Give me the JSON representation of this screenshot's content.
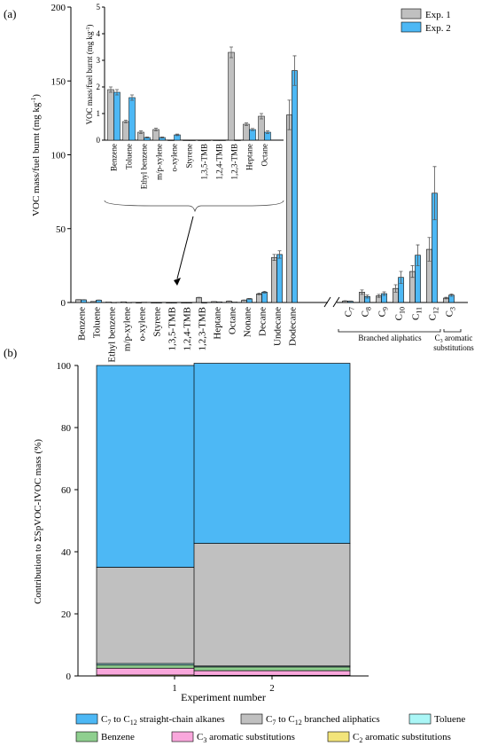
{
  "panel_a_label": "(a)",
  "panel_b_label": "(b)",
  "chart_data": [
    {
      "type": "bar",
      "ylabel_pre": "VOC mass/fuel burnt (mg kg",
      "ylabel_sup": "-1",
      "ylabel_post": ")",
      "ylim": [
        0,
        200
      ],
      "yticks": [
        0,
        50,
        100,
        150,
        200
      ],
      "legend_position": "top-right",
      "series": [
        {
          "name": "Exp. 1",
          "color": "#c0c0c0"
        },
        {
          "name": "Exp. 2",
          "color": "#4db8f5"
        }
      ],
      "categories": [
        {
          "label": "Benzene",
          "e1": 1.9,
          "e1err": 0.1,
          "e2": 1.8,
          "e2err": 0.1
        },
        {
          "label": "Toluene",
          "e1": 0.7,
          "e1err": 0.05,
          "e2": 1.6,
          "e2err": 0.1
        },
        {
          "label": "Ethyl benzene",
          "e1": 0.3,
          "e1err": 0.05,
          "e2": 0.1,
          "e2err": 0.02
        },
        {
          "label": "m/p-xylene",
          "e1": 0.4,
          "e1err": 0.05,
          "e2": 0.1,
          "e2err": 0.02
        },
        {
          "label": "o-xylene",
          "e1": 0.0,
          "e1err": 0,
          "e2": 0.2,
          "e2err": 0.03
        },
        {
          "label": "Styrene",
          "e1": 0.0,
          "e1err": 0,
          "e2": 0.0,
          "e2err": 0
        },
        {
          "label": "1,3,5-TMB",
          "e1": 0.0,
          "e1err": 0,
          "e2": 0.0,
          "e2err": 0
        },
        {
          "label": "1,2,4-TMB",
          "e1": 0.0,
          "e1err": 0,
          "e2": 0.0,
          "e2err": 0
        },
        {
          "label": "1,2,3-TMB",
          "e1": 3.3,
          "e1err": 0.2,
          "e2": 0.0,
          "e2err": 0
        },
        {
          "label": "Heptane",
          "e1": 0.6,
          "e1err": 0.05,
          "e2": 0.4,
          "e2err": 0.04
        },
        {
          "label": "Octane",
          "e1": 0.9,
          "e1err": 0.1,
          "e2": 0.3,
          "e2err": 0.05
        },
        {
          "label": "Nonane",
          "e1": 1.5,
          "e1err": 0.2,
          "e2": 2.5,
          "e2err": 0.3
        },
        {
          "label": "Decane",
          "e1": 5.8,
          "e1err": 0.5,
          "e2": 7.0,
          "e2err": 0.6
        },
        {
          "label": "Undecane",
          "e1": 30.5,
          "e1err": 2.0,
          "e2": 32.5,
          "e2err": 2.5
        },
        {
          "label": "Dodecane",
          "e1": 127,
          "e1err": 10,
          "e2": 157,
          "e2err": 10
        }
      ],
      "branched_categories": [
        {
          "label": "C",
          "sub": "7",
          "e1": 1.0,
          "e1err": 0.2,
          "e2": 0.8,
          "e2err": 0.2
        },
        {
          "label": "C",
          "sub": "8",
          "e1": 7.0,
          "e1err": 1.5,
          "e2": 4.0,
          "e2err": 1.0
        },
        {
          "label": "C",
          "sub": "9",
          "e1": 4.5,
          "e1err": 1.0,
          "e2": 6.0,
          "e2err": 1.2
        },
        {
          "label": "C",
          "sub": "10",
          "e1": 9.5,
          "e1err": 2.5,
          "e2": 17.0,
          "e2err": 4.0
        },
        {
          "label": "C",
          "sub": "11",
          "e1": 21.0,
          "e1err": 4.0,
          "e2": 32.0,
          "e2err": 7.0
        },
        {
          "label": "C",
          "sub": "12",
          "e1": 36.0,
          "e1err": 8.0,
          "e2": 74.0,
          "e2err": 18.0
        },
        {
          "label": "C",
          "sub": "3",
          "e1": 3.0,
          "e1err": 0.5,
          "e2": 5.0,
          "e2err": 0.8
        }
      ],
      "group_labels": {
        "branched": "Branched  aliphatics",
        "aromatic_line1_pre": "C",
        "aromatic_line1_sub": "3",
        "aromatic_line1_post": " aromatic",
        "aromatic_line2": "substitutions"
      },
      "inset": {
        "ylabel_pre": "VOC mass/fuel burnt (mg kg",
        "ylabel_sup": "-1",
        "ylabel_post": ")",
        "ylim": [
          0,
          5
        ],
        "yticks": [
          0,
          1,
          2,
          3,
          4,
          5
        ]
      }
    },
    {
      "type": "stacked_bar",
      "ylabel": "Contribution to ΣSpVOC-IVOC mass (%)",
      "xlabel": "Experiment number",
      "ylim": [
        0,
        100
      ],
      "yticks": [
        0,
        20,
        40,
        60,
        80,
        100
      ],
      "categories": [
        "1",
        "2"
      ],
      "series": [
        {
          "pre": "C",
          "sub1": "7",
          "mid": " to C",
          "sub2": "12",
          "post": " straight-chain alkanes",
          "color": "#4db8f5",
          "values": [
            65,
            58
          ]
        },
        {
          "pre": "C",
          "sub1": "7",
          "mid": " to C",
          "sub2": "12",
          "post": " branched aliphatics",
          "color": "#c0c0c0",
          "values": [
            31,
            39.5
          ]
        },
        {
          "pre": "Toluene",
          "sub1": "",
          "mid": "",
          "sub2": "",
          "post": "",
          "color": "#aaf6f6",
          "values": [
            0.5,
            0.3
          ]
        },
        {
          "pre": "Benzene",
          "sub1": "",
          "mid": "",
          "sub2": "",
          "post": "",
          "color": "#8fcf8f",
          "values": [
            1.0,
            1.2
          ]
        },
        {
          "pre": "C",
          "sub1": "3",
          "mid": " aromatic substitutions",
          "sub2": "",
          "post": "",
          "color": "#f9a7dc",
          "values": [
            2.2,
            1.5
          ]
        },
        {
          "pre": "C",
          "sub1": "2",
          "mid": " aromatic substitutions",
          "sub2": "",
          "post": "",
          "color": "#f2e47a",
          "values": [
            0.3,
            0.2
          ]
        }
      ]
    }
  ]
}
